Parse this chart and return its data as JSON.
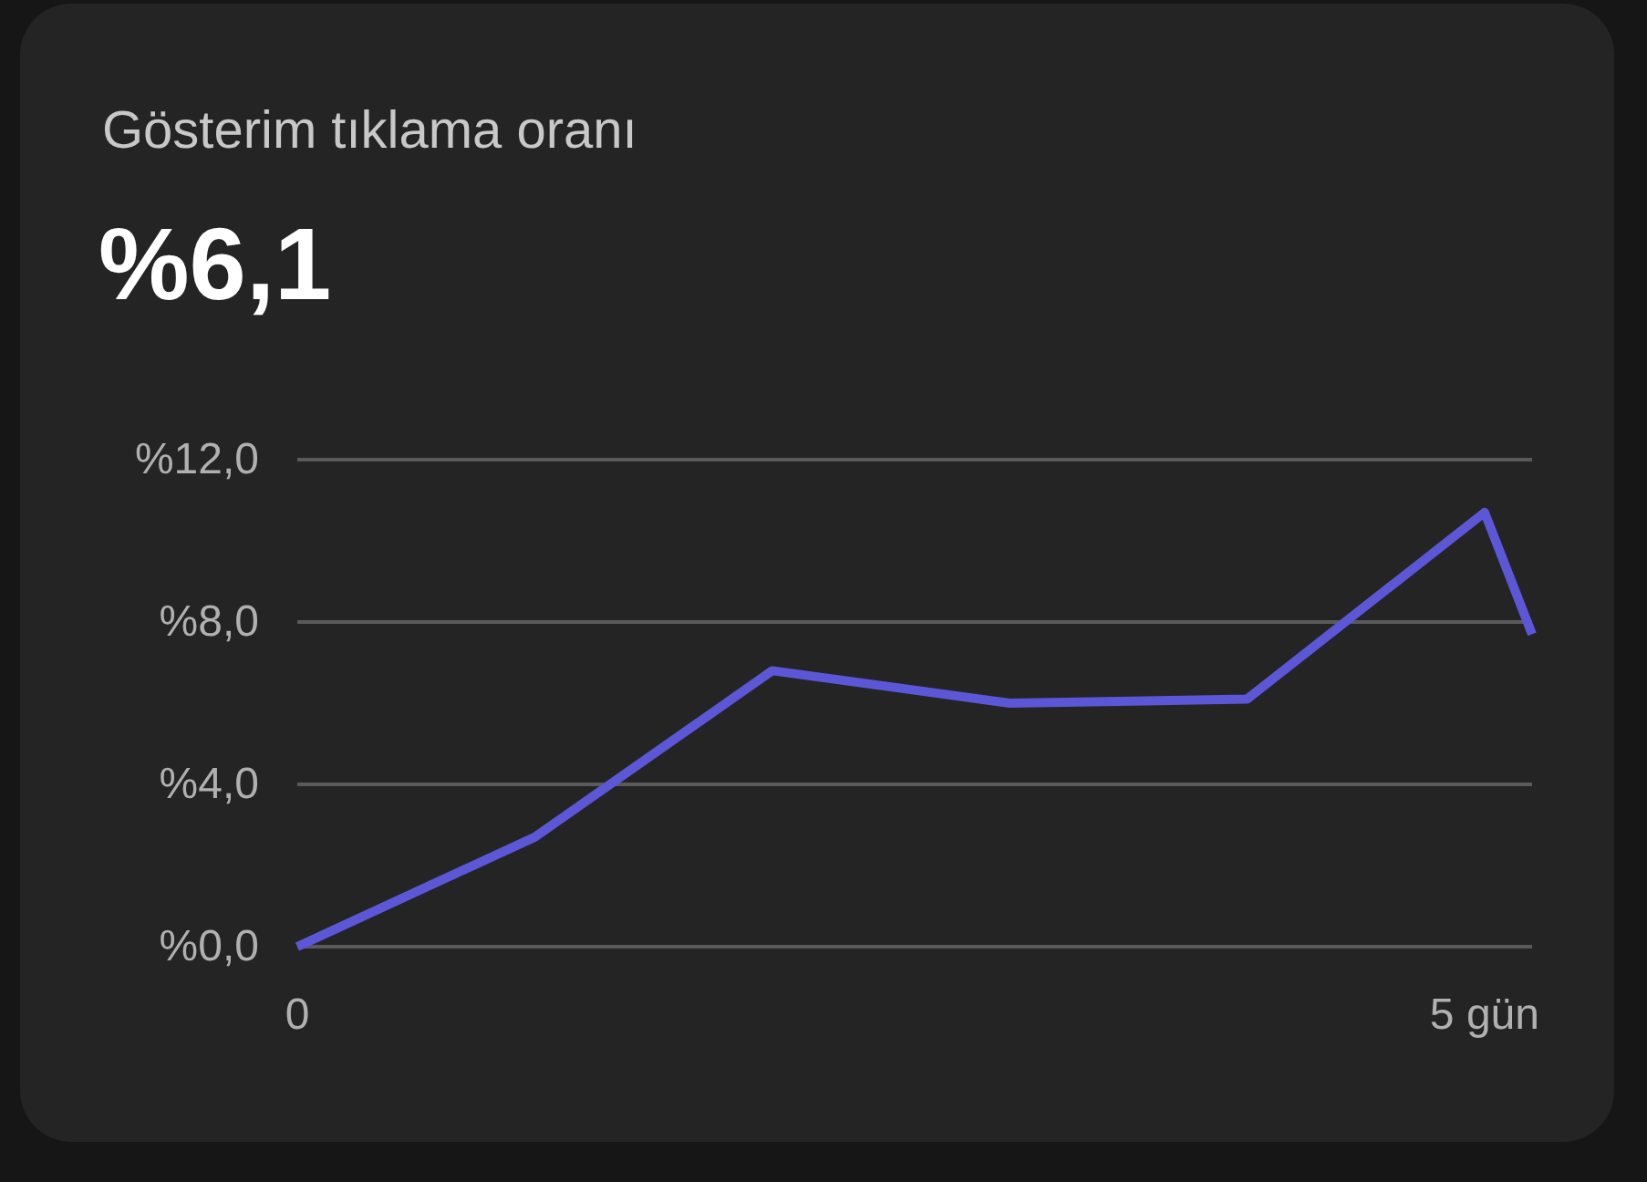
{
  "chart_data": {
    "type": "line",
    "title": "Gösterim tıklama oranı",
    "subtitle": "%6,1",
    "x": [
      0,
      1,
      2,
      3,
      4,
      5,
      5.2
    ],
    "series": [
      {
        "color": "#5b57d6",
        "values": [
          0,
          2.7,
          6.8,
          6.0,
          6.1,
          10.7,
          7.7
        ]
      }
    ],
    "xlim": [
      0,
      5.2
    ],
    "xticks": [
      {
        "value": 0,
        "label": "0"
      },
      {
        "value": 5,
        "label": "5 gün"
      }
    ],
    "ylim": [
      0,
      12
    ],
    "yticks": [
      {
        "value": 0,
        "label": "%0,0"
      },
      {
        "value": 4,
        "label": "%4,0"
      },
      {
        "value": 8,
        "label": "%8,0"
      },
      {
        "value": 12,
        "label": "%12,0"
      }
    ],
    "grid": "y",
    "marker": "none",
    "line_style": "solid"
  }
}
